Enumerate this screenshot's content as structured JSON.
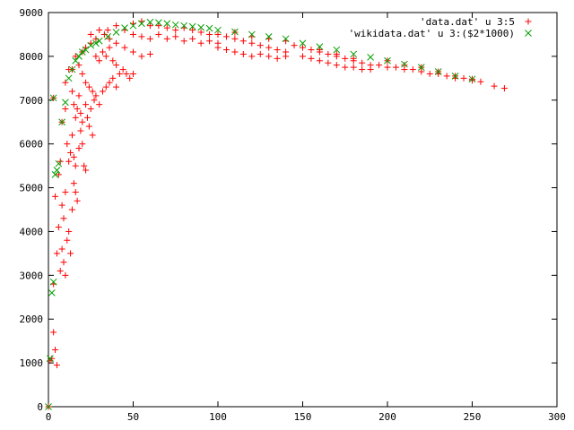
{
  "chart_data": {
    "type": "scatter",
    "title": "",
    "xlabel": "",
    "ylabel": "",
    "xlim": [
      0,
      300
    ],
    "ylim": [
      0,
      9000
    ],
    "x_ticks": [
      0,
      50,
      100,
      150,
      200,
      250,
      300
    ],
    "y_ticks": [
      0,
      1000,
      2000,
      3000,
      4000,
      5000,
      6000,
      7000,
      8000,
      9000
    ],
    "grid": false,
    "legend_position": "top-right",
    "series": [
      {
        "name": "'data.dat' u 3:5",
        "marker": "plus",
        "color": "#ff0000",
        "points": [
          [
            0,
            0
          ],
          [
            1,
            1050
          ],
          [
            2,
            1100
          ],
          [
            3,
            1700
          ],
          [
            4,
            1300
          ],
          [
            5,
            950
          ],
          [
            3,
            2800
          ],
          [
            4,
            4800
          ],
          [
            5,
            3500
          ],
          [
            6,
            4100
          ],
          [
            7,
            3100
          ],
          [
            8,
            3600
          ],
          [
            9,
            3300
          ],
          [
            10,
            3000
          ],
          [
            6,
            5300
          ],
          [
            7,
            5600
          ],
          [
            8,
            4600
          ],
          [
            9,
            4300
          ],
          [
            10,
            4900
          ],
          [
            11,
            3800
          ],
          [
            12,
            4000
          ],
          [
            13,
            3500
          ],
          [
            14,
            4500
          ],
          [
            15,
            5100
          ],
          [
            16,
            4900
          ],
          [
            17,
            4700
          ],
          [
            3,
            7050
          ],
          [
            8,
            6500
          ],
          [
            10,
            6800
          ],
          [
            11,
            6000
          ],
          [
            12,
            5600
          ],
          [
            13,
            5800
          ],
          [
            14,
            6200
          ],
          [
            15,
            5700
          ],
          [
            16,
            5500
          ],
          [
            18,
            5900
          ],
          [
            19,
            6300
          ],
          [
            20,
            6000
          ],
          [
            21,
            5500
          ],
          [
            22,
            5400
          ],
          [
            10,
            7400
          ],
          [
            12,
            7700
          ],
          [
            14,
            7200
          ],
          [
            15,
            6900
          ],
          [
            16,
            6600
          ],
          [
            17,
            6800
          ],
          [
            18,
            7100
          ],
          [
            19,
            6700
          ],
          [
            20,
            6500
          ],
          [
            22,
            6900
          ],
          [
            23,
            6600
          ],
          [
            24,
            6400
          ],
          [
            25,
            6800
          ],
          [
            26,
            6200
          ],
          [
            27,
            7000
          ],
          [
            14,
            7700
          ],
          [
            16,
            8000
          ],
          [
            18,
            7800
          ],
          [
            20,
            7600
          ],
          [
            22,
            7400
          ],
          [
            24,
            7300
          ],
          [
            26,
            7200
          ],
          [
            28,
            7100
          ],
          [
            30,
            6900
          ],
          [
            32,
            7200
          ],
          [
            34,
            7300
          ],
          [
            36,
            7400
          ],
          [
            38,
            7500
          ],
          [
            40,
            7300
          ],
          [
            42,
            7600
          ],
          [
            20,
            8100
          ],
          [
            22,
            8200
          ],
          [
            25,
            8300
          ],
          [
            28,
            8000
          ],
          [
            30,
            7900
          ],
          [
            32,
            8100
          ],
          [
            34,
            8000
          ],
          [
            36,
            8200
          ],
          [
            38,
            7900
          ],
          [
            40,
            7800
          ],
          [
            44,
            7700
          ],
          [
            46,
            7600
          ],
          [
            48,
            7500
          ],
          [
            50,
            7600
          ],
          [
            25,
            8500
          ],
          [
            28,
            8400
          ],
          [
            30,
            8600
          ],
          [
            33,
            8500
          ],
          [
            36,
            8400
          ],
          [
            40,
            8300
          ],
          [
            45,
            8200
          ],
          [
            50,
            8100
          ],
          [
            55,
            8000
          ],
          [
            60,
            8050
          ],
          [
            35,
            8600
          ],
          [
            40,
            8700
          ],
          [
            45,
            8600
          ],
          [
            50,
            8750
          ],
          [
            55,
            8800
          ],
          [
            60,
            8700
          ],
          [
            65,
            8700
          ],
          [
            70,
            8650
          ],
          [
            75,
            8600
          ],
          [
            80,
            8650
          ],
          [
            85,
            8600
          ],
          [
            90,
            8550
          ],
          [
            95,
            8500
          ],
          [
            50,
            8500
          ],
          [
            55,
            8450
          ],
          [
            60,
            8400
          ],
          [
            65,
            8500
          ],
          [
            70,
            8400
          ],
          [
            75,
            8450
          ],
          [
            80,
            8350
          ],
          [
            85,
            8400
          ],
          [
            90,
            8300
          ],
          [
            95,
            8350
          ],
          [
            100,
            8300
          ],
          [
            100,
            8500
          ],
          [
            105,
            8450
          ],
          [
            110,
            8400
          ],
          [
            115,
            8350
          ],
          [
            120,
            8300
          ],
          [
            125,
            8250
          ],
          [
            130,
            8200
          ],
          [
            135,
            8150
          ],
          [
            140,
            8100
          ],
          [
            100,
            8200
          ],
          [
            105,
            8150
          ],
          [
            110,
            8100
          ],
          [
            115,
            8050
          ],
          [
            120,
            8000
          ],
          [
            125,
            8050
          ],
          [
            130,
            8000
          ],
          [
            135,
            7950
          ],
          [
            140,
            8000
          ],
          [
            110,
            8550
          ],
          [
            120,
            8450
          ],
          [
            130,
            8400
          ],
          [
            140,
            8350
          ],
          [
            145,
            8250
          ],
          [
            150,
            8200
          ],
          [
            155,
            8150
          ],
          [
            160,
            8100
          ],
          [
            165,
            8050
          ],
          [
            170,
            8000
          ],
          [
            175,
            7950
          ],
          [
            180,
            7900
          ],
          [
            185,
            7850
          ],
          [
            190,
            7800
          ],
          [
            150,
            8000
          ],
          [
            155,
            7950
          ],
          [
            160,
            7900
          ],
          [
            165,
            7850
          ],
          [
            170,
            7800
          ],
          [
            175,
            7750
          ],
          [
            180,
            7750
          ],
          [
            185,
            7700
          ],
          [
            190,
            7700
          ],
          [
            160,
            8150
          ],
          [
            170,
            8050
          ],
          [
            180,
            7950
          ],
          [
            195,
            7800
          ],
          [
            200,
            7750
          ],
          [
            205,
            7750
          ],
          [
            210,
            7700
          ],
          [
            215,
            7700
          ],
          [
            220,
            7650
          ],
          [
            225,
            7600
          ],
          [
            230,
            7600
          ],
          [
            235,
            7550
          ],
          [
            240,
            7500
          ],
          [
            245,
            7500
          ],
          [
            250,
            7450
          ],
          [
            255,
            7420
          ],
          [
            200,
            7900
          ],
          [
            210,
            7800
          ],
          [
            220,
            7750
          ],
          [
            230,
            7650
          ],
          [
            240,
            7550
          ],
          [
            250,
            7480
          ],
          [
            263,
            7320
          ],
          [
            269,
            7270
          ]
        ]
      },
      {
        "name": "'wikidata.dat' u 3:($2*1000)",
        "marker": "cross",
        "color": "#00a000",
        "points": [
          [
            0,
            0
          ],
          [
            1,
            1100
          ],
          [
            2,
            2600
          ],
          [
            3,
            2850
          ],
          [
            4,
            5300
          ],
          [
            5,
            5400
          ],
          [
            6,
            5550
          ],
          [
            8,
            6500
          ],
          [
            10,
            6950
          ],
          [
            3,
            7050
          ],
          [
            12,
            7500
          ],
          [
            14,
            7700
          ],
          [
            16,
            7900
          ],
          [
            18,
            8000
          ],
          [
            20,
            8100
          ],
          [
            22,
            8150
          ],
          [
            25,
            8250
          ],
          [
            28,
            8300
          ],
          [
            30,
            8350
          ],
          [
            35,
            8450
          ],
          [
            40,
            8550
          ],
          [
            45,
            8650
          ],
          [
            50,
            8700
          ],
          [
            55,
            8750
          ],
          [
            60,
            8780
          ],
          [
            65,
            8770
          ],
          [
            70,
            8750
          ],
          [
            75,
            8720
          ],
          [
            80,
            8700
          ],
          [
            85,
            8680
          ],
          [
            90,
            8660
          ],
          [
            95,
            8640
          ],
          [
            100,
            8600
          ],
          [
            110,
            8560
          ],
          [
            120,
            8500
          ],
          [
            130,
            8450
          ],
          [
            140,
            8400
          ],
          [
            150,
            8300
          ],
          [
            160,
            8220
          ],
          [
            170,
            8150
          ],
          [
            180,
            8050
          ],
          [
            190,
            7980
          ],
          [
            200,
            7900
          ],
          [
            210,
            7820
          ],
          [
            220,
            7750
          ],
          [
            230,
            7650
          ],
          [
            240,
            7550
          ],
          [
            250,
            7480
          ]
        ]
      }
    ]
  }
}
